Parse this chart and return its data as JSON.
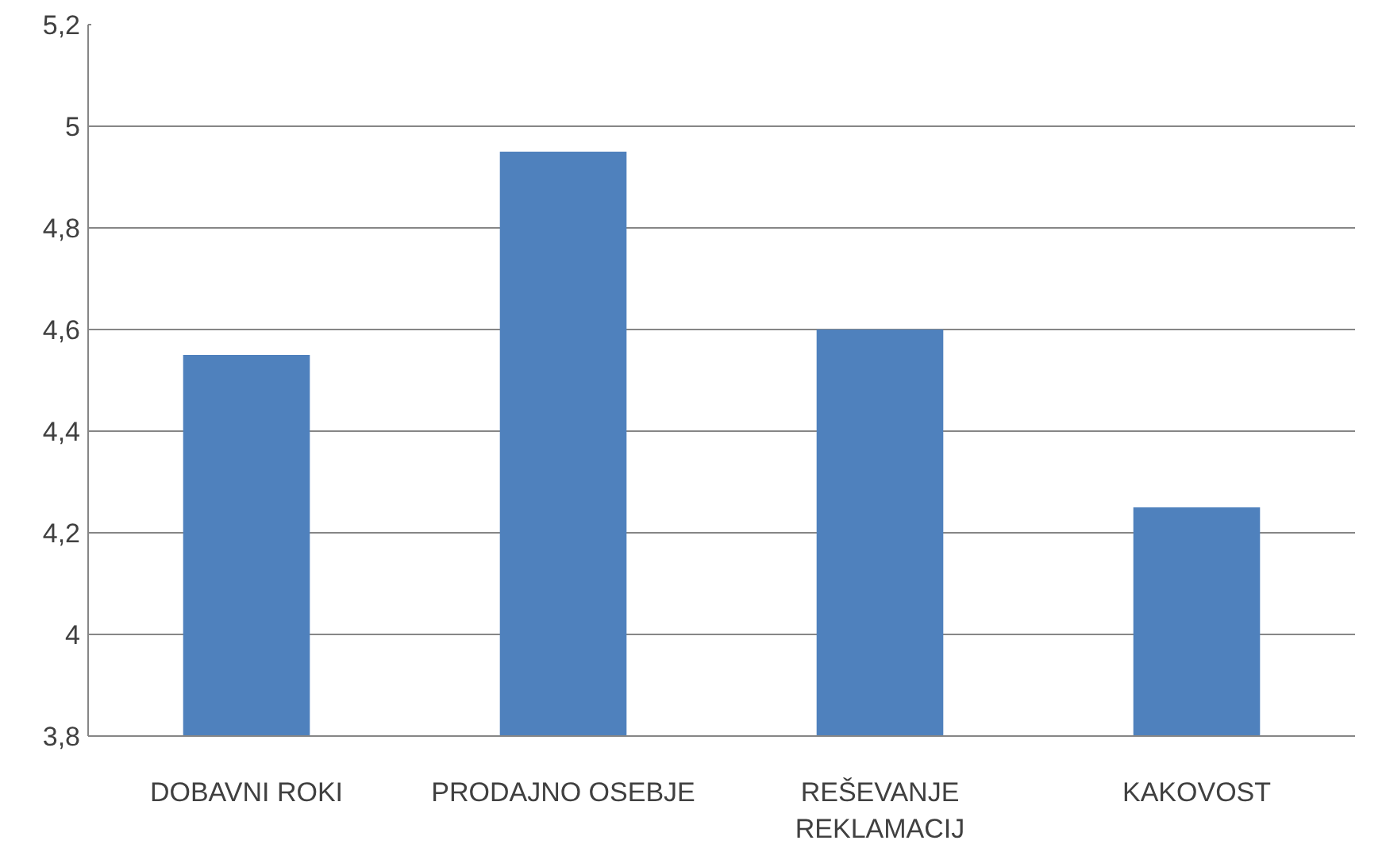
{
  "chart_data": {
    "type": "bar",
    "categories": [
      "DOBAVNI ROKI",
      "PRODAJNO OSEBJE",
      "REŠEVANJE\nREKLAMACIJ",
      "KAKOVOST"
    ],
    "values": [
      4.55,
      4.95,
      4.6,
      4.25
    ],
    "color": "#4f81bd",
    "ylim": [
      3.8,
      5.2
    ],
    "yticks": [
      {
        "value": 3.8,
        "label": "3,8"
      },
      4,
      {
        "value": 4.2,
        "label": "4,2"
      },
      {
        "value": 4.4,
        "label": "4,4"
      },
      {
        "value": 4.6,
        "label": "4,6"
      },
      {
        "value": 4.8,
        "label": "4,8"
      },
      5,
      {
        "value": 5.2,
        "label": "5,2"
      }
    ],
    "grid": "y"
  }
}
